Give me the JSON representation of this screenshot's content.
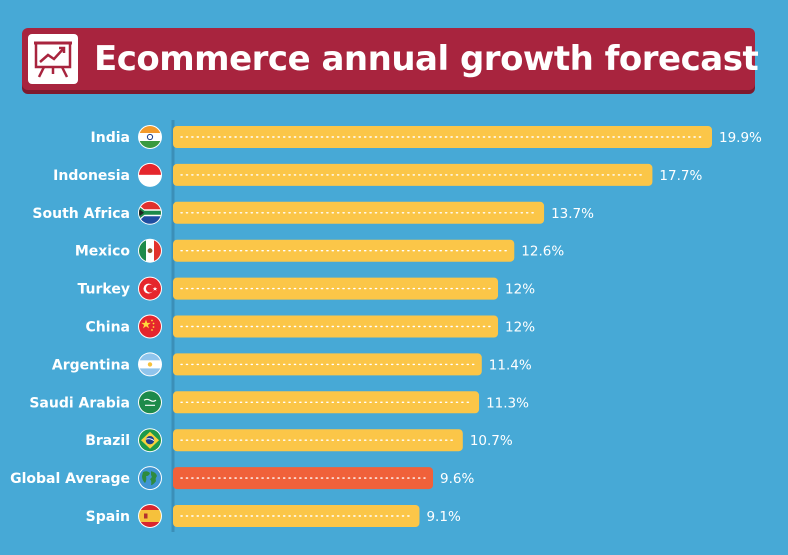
{
  "title": "Ecommerce annual growth forecast",
  "colors": {
    "background": "#47a9d6",
    "banner": "#a8243e",
    "bar": "#fbc648",
    "highlight_bar": "#f0613a",
    "text": "#ffffff"
  },
  "title_icon": "chart-presentation-icon",
  "chart_data": {
    "type": "bar",
    "orientation": "horizontal",
    "title": "Ecommerce annual growth forecast",
    "categories": [
      "India",
      "Indonesia",
      "South Africa",
      "Mexico",
      "Turkey",
      "China",
      "Argentina",
      "Saudi Arabia",
      "Brazil",
      "Global Average",
      "Spain"
    ],
    "values": [
      19.9,
      17.7,
      13.7,
      12.6,
      12,
      12,
      11.4,
      11.3,
      10.7,
      9.6,
      9.1
    ],
    "value_labels": [
      "19.9%",
      "17.7%",
      "13.7%",
      "12.6%",
      "12%",
      "12%",
      "11.4%",
      "11.3%",
      "10.7%",
      "9.6%",
      "9.1%"
    ],
    "flag_icons": [
      "india-flag-icon",
      "indonesia-flag-icon",
      "south-africa-flag-icon",
      "mexico-flag-icon",
      "turkey-flag-icon",
      "china-flag-icon",
      "argentina-flag-icon",
      "saudi-arabia-flag-icon",
      "brazil-flag-icon",
      "globe-icon",
      "spain-flag-icon"
    ],
    "highlight_category": "Global Average",
    "xlim": [
      0,
      20
    ],
    "grid": false,
    "legend": "none",
    "xlabel": "",
    "ylabel": ""
  }
}
